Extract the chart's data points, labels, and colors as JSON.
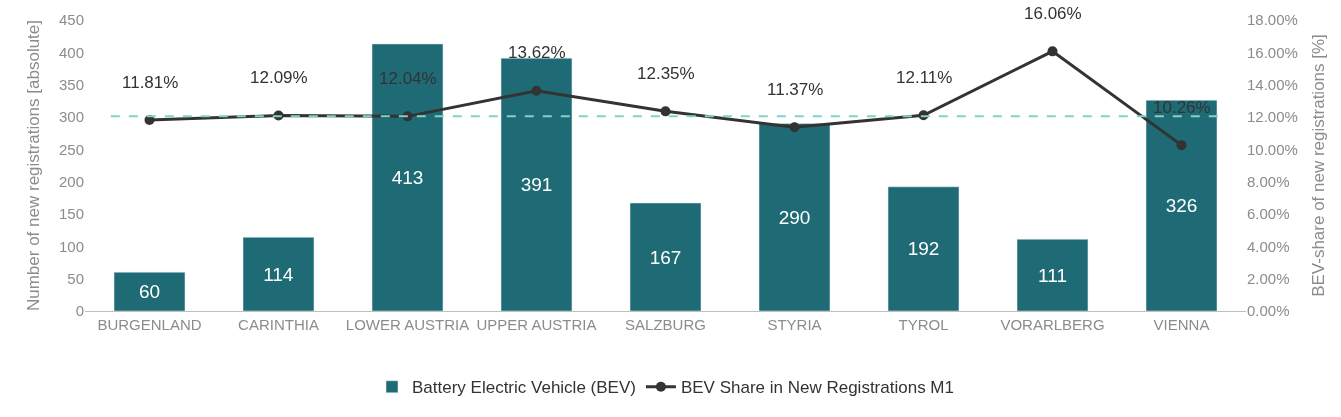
{
  "chart_data": {
    "type": "bar",
    "categories": [
      "BURGENLAND",
      "CARINTHIA",
      "LOWER AUSTRIA",
      "UPPER AUSTRIA",
      "SALZBURG",
      "STYRIA",
      "TYROL",
      "VORARLBERG",
      "VIENNA"
    ],
    "series": [
      {
        "name": "Battery Electric Vehicle (BEV)",
        "color": "#1f6b75",
        "values": [
          60,
          114,
          413,
          391,
          167,
          290,
          192,
          111,
          326
        ]
      },
      {
        "name": "BEV Share in New Registrations M1",
        "type": "line",
        "axis": "y2",
        "color": "#333333",
        "marker": "circle",
        "line_style": "solid",
        "values": [
          11.81,
          12.09,
          12.04,
          13.62,
          12.35,
          11.37,
          12.11,
          16.06,
          10.26
        ],
        "value_labels": [
          "11.81%",
          "12.09%",
          "12.04%",
          "13.62%",
          "12.35%",
          "11.37%",
          "12.11%",
          "16.06%",
          "10.26%"
        ]
      }
    ],
    "data_labels": true,
    "ylabel": "Number of new registrations [absolute]",
    "y2label": "BEV-share of new registrations [%]",
    "ylim": [
      0,
      450
    ],
    "yticks": [
      0,
      50,
      100,
      150,
      200,
      250,
      300,
      350,
      400,
      450
    ],
    "y2lim": [
      0,
      18
    ],
    "y2ticks": [
      {
        "value": 0,
        "label": "0.00%"
      },
      {
        "value": 2,
        "label": "2.00%"
      },
      {
        "value": 4,
        "label": "4.00%"
      },
      {
        "value": 6,
        "label": "6.00%"
      },
      {
        "value": 8,
        "label": "8.00%"
      },
      {
        "value": 10,
        "label": "10.00%"
      },
      {
        "value": 12,
        "label": "12.00%"
      },
      {
        "value": 14,
        "label": "14.00%"
      },
      {
        "value": 16,
        "label": "16.00%"
      },
      {
        "value": 18,
        "label": "18.00%"
      }
    ],
    "ref_lines": [
      {
        "axis": "y2",
        "value": 12.05,
        "color": "#7fd3c8",
        "line_style": "dashed"
      }
    ],
    "legend": "bottom"
  }
}
